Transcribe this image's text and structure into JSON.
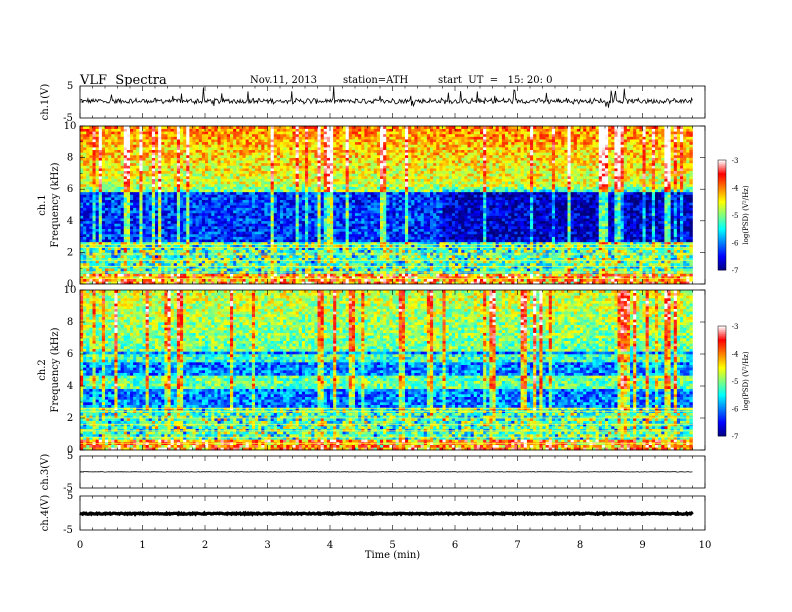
{
  "header": {
    "title": "VLF  Spectra",
    "date": "Nov.11, 2013",
    "station": "station=ATH",
    "start": "start  UT  =   15: 20: 0"
  },
  "chart_data": [
    {
      "type": "line",
      "ylabel": "ch.1(V)",
      "ylim": [
        -5,
        5
      ],
      "yticks": [
        "5",
        "-5"
      ],
      "description_values": {
        "baseline": 0
      }
    },
    {
      "type": "heatmap",
      "ylabel_channel": "ch.1",
      "ylabel": "Frequency  (kHz)",
      "ylim": [
        0,
        10
      ],
      "yticks": [
        "0",
        "2",
        "4",
        "6",
        "8",
        "10"
      ],
      "xlim": [
        0,
        9.8
      ],
      "colorbar": {
        "label": "log(PSD) (V²/Hz)",
        "range": [
          -7,
          -3
        ],
        "ticks": [
          "-3",
          "-4",
          "-5",
          "-6",
          "-7"
        ],
        "colormap": [
          "#00007f",
          "#0000ff",
          "#0080ff",
          "#00ffff",
          "#80ff80",
          "#ffff00",
          "#ff8000",
          "#ff0000",
          "#ffffff"
        ]
      }
    },
    {
      "type": "heatmap",
      "ylabel_channel": "ch.2",
      "ylabel": "Frequency  (kHz)",
      "ylim": [
        0,
        10
      ],
      "yticks": [
        "0",
        "2",
        "4",
        "6",
        "8",
        "10"
      ],
      "xlim": [
        0,
        9.8
      ],
      "colorbar": {
        "label": "log(PSD) (V²/Hz)",
        "range": [
          -7,
          -3
        ],
        "ticks": [
          "-3",
          "-4",
          "-5",
          "-6",
          "-7"
        ]
      }
    },
    {
      "type": "line",
      "ylabel": "ch.3(V)",
      "ylim": [
        -5,
        5
      ],
      "yticks": [
        "5",
        "-5"
      ]
    },
    {
      "type": "line",
      "ylabel": "ch.4(V)",
      "ylim": [
        -5,
        5
      ],
      "yticks": [
        "5",
        "-5"
      ],
      "xlabel": "Time  (min)",
      "xlim": [
        0,
        10
      ],
      "xticks": [
        "0",
        "1",
        "2",
        "3",
        "4",
        "5",
        "6",
        "7",
        "8",
        "9",
        "10"
      ]
    }
  ]
}
